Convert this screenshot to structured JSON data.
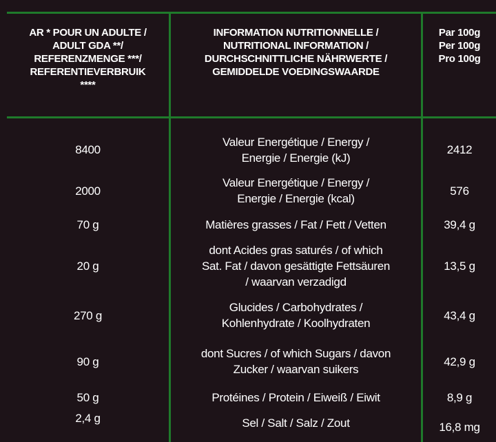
{
  "header": {
    "col1": [
      "AR * POUR UN ADULTE /",
      "ADULT GDA **/",
      "REFERENZMENGE ***/",
      "REFERENTIEVERBRUIK",
      "****"
    ],
    "col2": [
      "INFORMATION NUTRITIONNELLE /",
      "NUTRITIONAL INFORMATION /",
      "DURCHSCHNITTLICHE NÄHRWERTE /",
      "GEMIDDELDE VOEDINGSWAARDE"
    ],
    "col3": [
      "Par 100g",
      "Per 100g",
      "Pro 100g"
    ]
  },
  "table": {
    "rows": [
      {
        "gda": "8400",
        "label": [
          "Valeur Energétique / Energy /",
          "Energie / Energie (kJ)"
        ],
        "per100": "2412"
      },
      {
        "gda": "2000",
        "label": [
          "Valeur Energétique / Energy /",
          "Energie / Energie (kcal)"
        ],
        "per100": "576"
      },
      {
        "gda": "70 g",
        "label": [
          "Matières grasses / Fat / Fett / Vetten"
        ],
        "per100": "39,4 g"
      },
      {
        "gda": "20 g",
        "label": [
          "dont Acides gras saturés / of which",
          "Sat. Fat / davon gesättigte Fettsäuren",
          "/ waarvan verzadigd"
        ],
        "per100": "13,5 g"
      },
      {
        "gda": "270 g",
        "label": [
          "Glucides / Carbohydrates /",
          "Kohlenhydrate / Koolhydraten"
        ],
        "per100": "43,4 g"
      },
      {
        "gda": "90 g",
        "label": [
          "dont Sucres / of which Sugars / davon",
          "Zucker / waarvan suikers"
        ],
        "per100": "42,9 g"
      },
      {
        "gda": "50 g",
        "label": [
          "Protéines / Protein / Eiweiß / Eiwit"
        ],
        "per100": "8,9 g"
      },
      {
        "gda": "2,4 g",
        "label": [
          "Sel / Salt / Salz / Zout"
        ],
        "per100": "16,8 mg"
      }
    ]
  }
}
